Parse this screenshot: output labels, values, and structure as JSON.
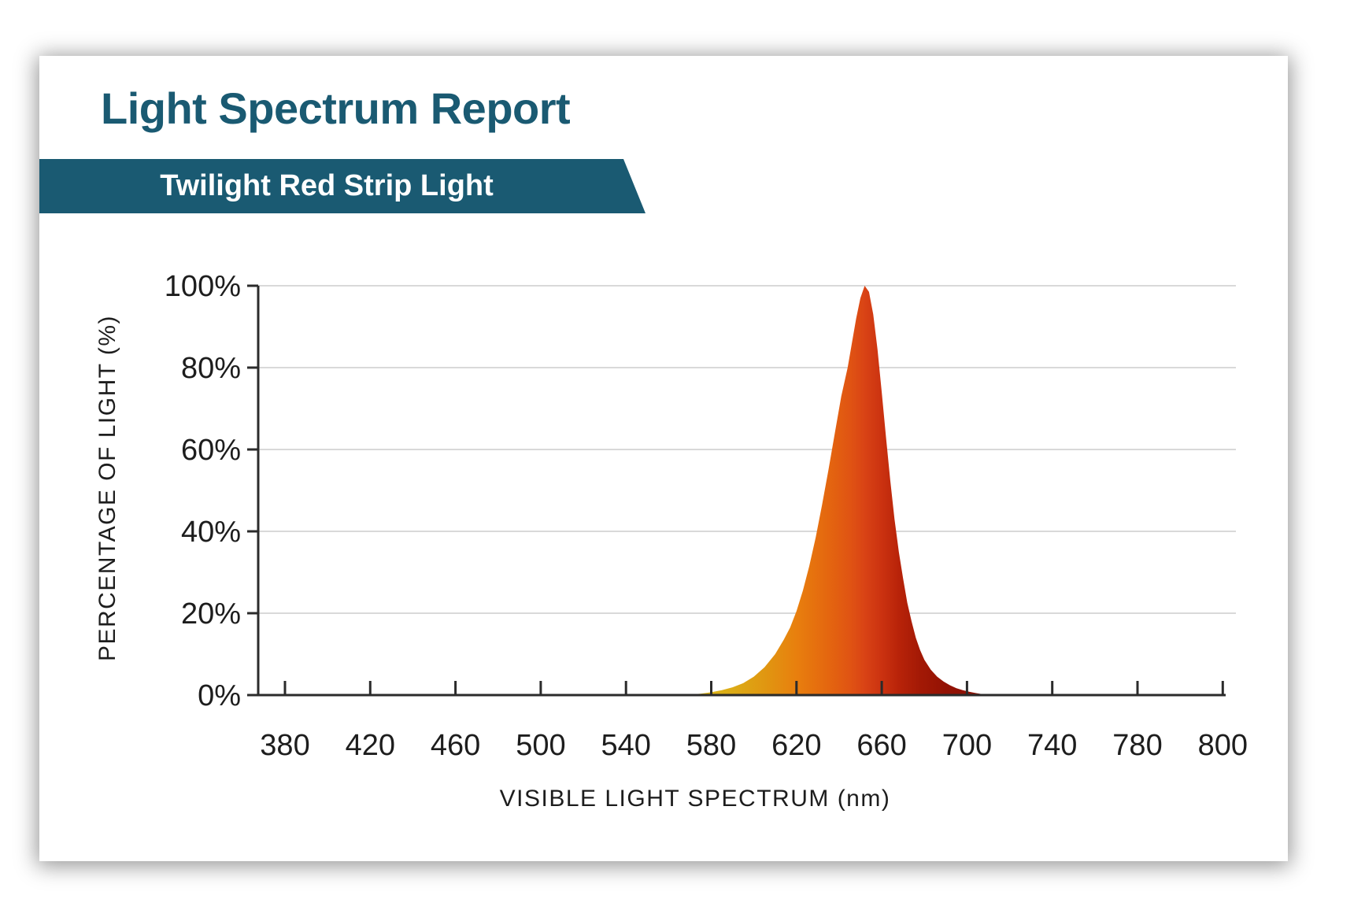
{
  "report": {
    "title": "Light Spectrum Report",
    "product_banner": "Twilight Red Strip Light"
  },
  "colors": {
    "accent_teal": "#1a5a72",
    "axis_line": "#2b2b2b",
    "gridline": "#d9d9d9",
    "label_text": "#1d1d1d",
    "card_background": "#ffffff"
  },
  "chart_data": {
    "type": "area",
    "title": "",
    "xlabel": "VISIBLE LIGHT SPECTRUM (nm)",
    "ylabel": "PERCENTAGE OF LIGHT (%)",
    "x_tick_labels": [
      380,
      420,
      460,
      500,
      540,
      580,
      620,
      660,
      700,
      740,
      780,
      800
    ],
    "y_tick_labels": [
      "0%",
      "20%",
      "40%",
      "60%",
      "80%",
      "100%"
    ],
    "ylim": [
      0,
      100
    ],
    "grid": "horizontal",
    "legend": "none",
    "peak_nm": 652,
    "peak_percent": 100,
    "series": [
      {
        "name": "Twilight Red Strip Light spectrum",
        "points": [
          [
            565,
            0
          ],
          [
            570,
            0.15
          ],
          [
            575,
            0.35
          ],
          [
            580,
            0.7
          ],
          [
            585,
            1.2
          ],
          [
            590,
            1.9
          ],
          [
            595,
            2.9
          ],
          [
            600,
            4.5
          ],
          [
            605,
            6.8
          ],
          [
            610,
            10
          ],
          [
            614,
            13.5
          ],
          [
            617,
            16.5
          ],
          [
            620,
            20.5
          ],
          [
            623,
            25.5
          ],
          [
            626,
            31.5
          ],
          [
            629,
            38.5
          ],
          [
            632,
            46.5
          ],
          [
            635,
            55
          ],
          [
            638,
            64
          ],
          [
            641,
            73
          ],
          [
            644,
            80
          ],
          [
            646,
            86
          ],
          [
            648,
            92
          ],
          [
            650,
            97
          ],
          [
            652,
            100
          ],
          [
            654,
            98.5
          ],
          [
            656,
            93
          ],
          [
            658,
            84.5
          ],
          [
            660,
            74
          ],
          [
            662,
            63
          ],
          [
            664,
            52.5
          ],
          [
            666,
            43
          ],
          [
            668,
            35
          ],
          [
            670,
            28.5
          ],
          [
            672,
            22.5
          ],
          [
            674,
            18
          ],
          [
            676,
            14
          ],
          [
            678,
            11
          ],
          [
            680,
            8.6
          ],
          [
            683,
            6.2
          ],
          [
            686,
            4.5
          ],
          [
            689,
            3.3
          ],
          [
            692,
            2.4
          ],
          [
            695,
            1.7
          ],
          [
            698,
            1.2
          ],
          [
            701,
            0.8
          ],
          [
            704,
            0.5
          ],
          [
            707,
            0.25
          ],
          [
            710,
            0
          ]
        ]
      }
    ],
    "fill_gradient": [
      {
        "nm": 565,
        "color": "#dfc01d"
      },
      {
        "nm": 590,
        "color": "#dcab16"
      },
      {
        "nm": 605,
        "color": "#e09711"
      },
      {
        "nm": 620,
        "color": "#e87f0e"
      },
      {
        "nm": 635,
        "color": "#e4660f"
      },
      {
        "nm": 645,
        "color": "#e05413"
      },
      {
        "nm": 652,
        "color": "#d94315"
      },
      {
        "nm": 660,
        "color": "#cb3210"
      },
      {
        "nm": 668,
        "color": "#b82309"
      },
      {
        "nm": 678,
        "color": "#a31905"
      },
      {
        "nm": 690,
        "color": "#931204"
      },
      {
        "nm": 710,
        "color": "#8a0f03"
      }
    ]
  }
}
